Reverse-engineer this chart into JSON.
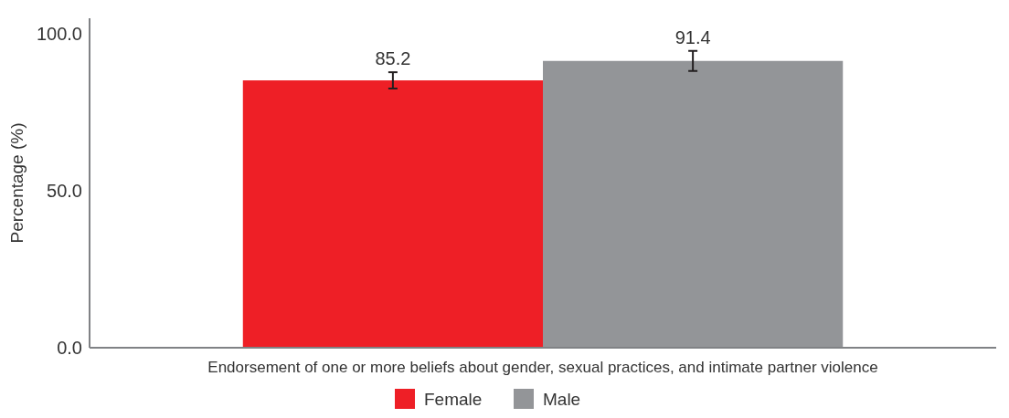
{
  "chart_data": {
    "type": "bar",
    "ylabel": "Percentage (%)",
    "categories": [
      "Endorsement of one or more beliefs about gender, sexual practices, and intimate partner violence"
    ],
    "series": [
      {
        "name": "Female",
        "color": "#ee1f26",
        "values": [
          85.2
        ],
        "errors": [
          2.6
        ]
      },
      {
        "name": "Male",
        "color": "#939598",
        "values": [
          91.4
        ],
        "errors": [
          3.2
        ]
      }
    ],
    "ylim": [
      0,
      105
    ],
    "yticks": [
      {
        "value": 0,
        "label": "0.0"
      },
      {
        "value": 50,
        "label": "50.0"
      },
      {
        "value": 100,
        "label": "100.0"
      }
    ],
    "data_labels": true,
    "legend": "bottom",
    "grid": false
  }
}
